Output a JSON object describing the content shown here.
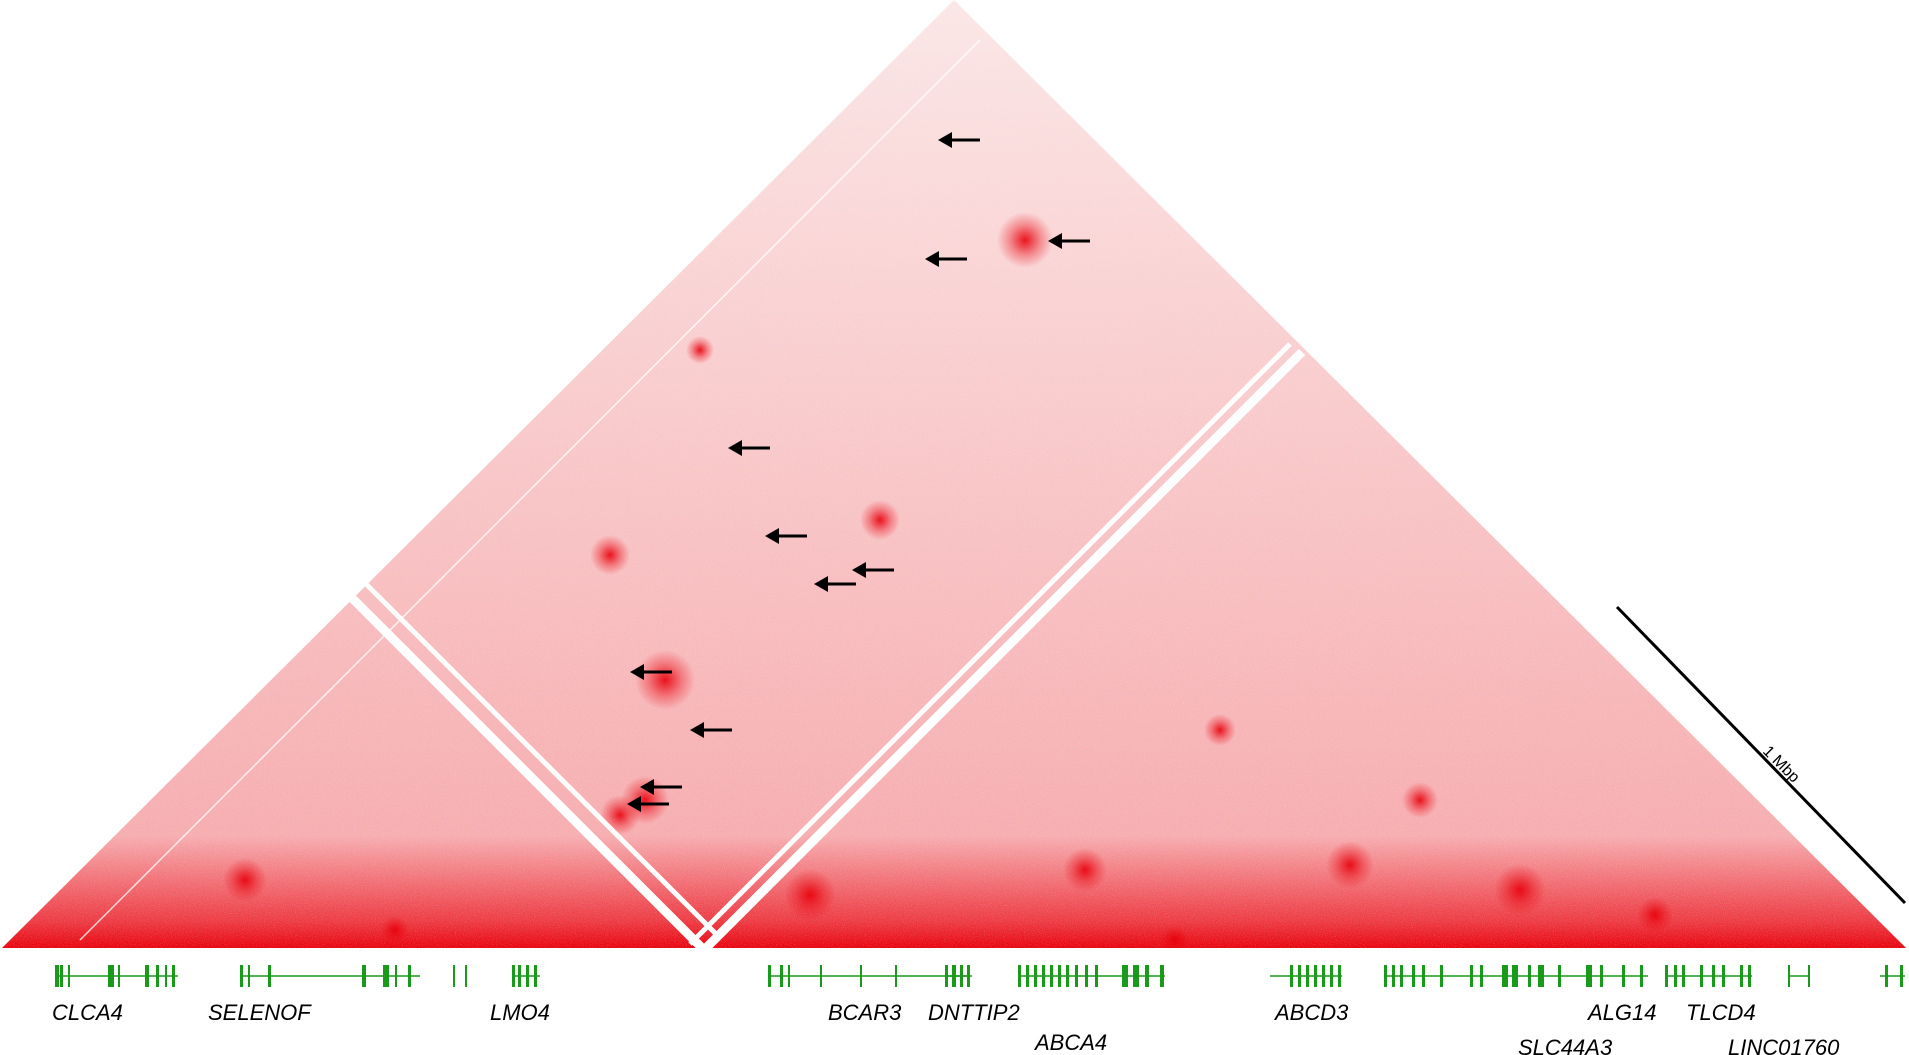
{
  "figure": {
    "scale_bar": {
      "label": "1 Mbp"
    },
    "colors": {
      "heatmap": "#e8000b",
      "heatmap_light": "#fbe3e3",
      "gene_track": "#1a9a1a",
      "arrow": "#000000",
      "gap": "#ffffff"
    },
    "genes": [
      {
        "name": "CLCA4"
      },
      {
        "name": "SELENOF"
      },
      {
        "name": "LMO4"
      },
      {
        "name": "BCAR3"
      },
      {
        "name": "DNTTIP2"
      },
      {
        "name": "ABCA4"
      },
      {
        "name": "ABCD3"
      },
      {
        "name": "SLC44A3"
      },
      {
        "name": "ALG14"
      },
      {
        "name": "TLCD4"
      },
      {
        "name": "LINC01760"
      }
    ],
    "arrow_count": 12
  }
}
